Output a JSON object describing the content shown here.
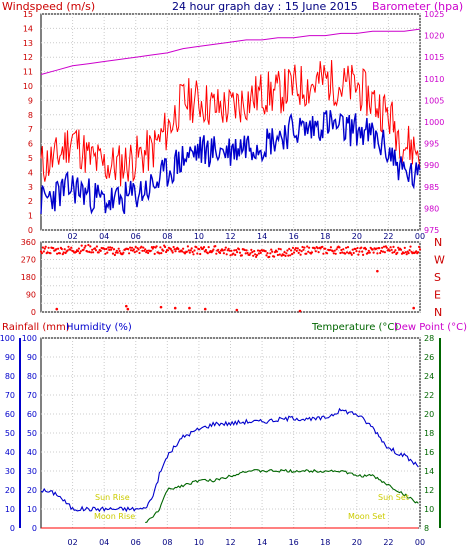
{
  "header": {
    "title": "24 hour graph day : 15 June 2015",
    "left_label": "Windspeed (m/s)",
    "right_label": "Barometer (hpa)"
  },
  "colors": {
    "wind": "#ff0000",
    "gust": "#ff0000",
    "avg": "#0000cc",
    "baro": "#cc00cc",
    "humidity": "#0000cc",
    "temperature": "#006600",
    "dewpoint": "#cc00cc",
    "rain": "#ff0000",
    "sun_moon": "#cccc00",
    "grid": "#cccccc"
  },
  "lower_header": {
    "rain_label": "Rainfall (mm)",
    "humidity_label": "Humidity (%)",
    "temperature_label": "Temperature (°C)",
    "dewpoint_label": "Dew Point (°C)"
  },
  "annotations": {
    "sun_rise": "Sun Rise",
    "sun_set": "Sun Set",
    "moon_rise": "Moon Rise",
    "moon_set": "Moon Set"
  },
  "chart_data": [
    {
      "type": "line",
      "title": "24 hour graph day : 15 June 2015",
      "xlabel": "",
      "x_ticks": [
        "02",
        "04",
        "06",
        "08",
        "10",
        "12",
        "14",
        "16",
        "18",
        "20",
        "22",
        "00"
      ],
      "ylabel_left": "Windspeed (m/s)",
      "ylim_left": [
        0,
        15
      ],
      "y_ticks_left": [
        0,
        1,
        2,
        3,
        4,
        5,
        6,
        7,
        8,
        9,
        10,
        11,
        12,
        13,
        14,
        15
      ],
      "ylabel_right": "Barometer (hpa)",
      "ylim_right": [
        975,
        1025
      ],
      "y_ticks_right": [
        975,
        980,
        985,
        990,
        995,
        1000,
        1005,
        1010,
        1015,
        1020,
        1025
      ],
      "x_hours": [
        0,
        1,
        2,
        3,
        4,
        5,
        6,
        7,
        8,
        9,
        10,
        11,
        12,
        13,
        14,
        15,
        16,
        17,
        18,
        19,
        20,
        21,
        22,
        23,
        24
      ],
      "series": [
        {
          "key": "gust",
          "axis": "left",
          "values": [
            4.5,
            5,
            6.5,
            5,
            4.5,
            4.5,
            5,
            5.5,
            7,
            9,
            9,
            8.5,
            8.5,
            9,
            9.5,
            9.5,
            10,
            10,
            10.5,
            10,
            10,
            9,
            8,
            6,
            5.5
          ]
        },
        {
          "key": "avg",
          "axis": "left",
          "values": [
            2,
            2.5,
            3,
            2.5,
            2,
            2,
            2.5,
            3,
            4,
            5,
            5.5,
            5.5,
            5.5,
            6,
            6,
            6.5,
            7,
            7,
            7.5,
            7,
            7,
            6.5,
            5.5,
            4,
            3.5
          ]
        },
        {
          "key": "barometer",
          "axis": "right",
          "values": [
            1011,
            1012,
            1013,
            1013.5,
            1014,
            1014.5,
            1015,
            1015.5,
            1016,
            1017,
            1017.5,
            1018,
            1018.5,
            1019,
            1019,
            1019.5,
            1019.5,
            1020,
            1020,
            1020.5,
            1020.5,
            1021,
            1021,
            1021,
            1021.5
          ]
        }
      ]
    },
    {
      "type": "scatter",
      "xlabel": "",
      "x_ticks": [
        "02",
        "04",
        "06",
        "08",
        "10",
        "12",
        "14",
        "16",
        "18",
        "20",
        "22",
        "00"
      ],
      "y_ticks_left": [
        0,
        45,
        90,
        135,
        180,
        225,
        270,
        315,
        360
      ],
      "y_ticks_right": [
        "N",
        "W",
        "S",
        "E",
        "N"
      ],
      "ylim": [
        0,
        360
      ],
      "series": [
        {
          "key": "direction_main",
          "x": [
            0,
            1,
            2,
            3,
            4,
            5,
            6,
            7,
            8,
            9,
            10,
            11,
            12,
            13,
            14,
            15,
            16,
            17,
            18,
            19,
            20,
            21,
            22,
            23,
            24
          ],
          "values": [
            320,
            315,
            320,
            325,
            315,
            310,
            320,
            315,
            325,
            320,
            315,
            320,
            310,
            305,
            300,
            305,
            310,
            320,
            315,
            320,
            310,
            315,
            320,
            315,
            320
          ]
        },
        {
          "key": "direction_low",
          "x": [
            1,
            5.4,
            5.5,
            7.6,
            8.5,
            9.4,
            10.4,
            12.4,
            16.4,
            21.3,
            23.6
          ],
          "values": [
            15,
            30,
            15,
            25,
            20,
            20,
            15,
            10,
            5,
            210,
            20
          ]
        }
      ]
    },
    {
      "type": "line",
      "xlabel": "",
      "x_ticks": [
        "02",
        "04",
        "06",
        "08",
        "10",
        "12",
        "14",
        "16",
        "18",
        "20",
        "22",
        "00"
      ],
      "ylabel_left": "Humidity (%)",
      "ylim_left": [
        0,
        100
      ],
      "y_ticks_left": [
        0,
        10,
        20,
        30,
        40,
        50,
        60,
        70,
        80,
        90,
        100
      ],
      "ylabel_right": "Temperature (°C)",
      "ylim_right": [
        8,
        28
      ],
      "y_ticks_right": [
        8,
        10,
        12,
        14,
        16,
        18,
        20,
        22,
        24,
        26,
        28
      ],
      "x_hours": [
        0,
        0.5,
        1,
        2,
        3,
        4,
        5,
        6,
        6.5,
        7,
        7.5,
        8,
        9,
        10,
        11,
        12,
        13,
        14,
        15,
        16,
        17,
        18,
        19,
        20,
        21,
        22,
        23,
        24
      ],
      "series": [
        {
          "key": "humidity",
          "axis": "left",
          "values": [
            20,
            19,
            18,
            10,
            10,
            10,
            10,
            10,
            10,
            15,
            28,
            38,
            48,
            52,
            55,
            55,
            56,
            56,
            57,
            58,
            57,
            58,
            62,
            60,
            53,
            42,
            38,
            32
          ]
        },
        {
          "key": "temperature",
          "axis": "right",
          "values": [
            null,
            null,
            null,
            null,
            null,
            null,
            null,
            null,
            8.5,
            9,
            10,
            12,
            12.5,
            13,
            13,
            13.5,
            14,
            14,
            14,
            14,
            14,
            14,
            14,
            13.5,
            13.5,
            12.5,
            11.5,
            10.5
          ]
        },
        {
          "key": "rain",
          "axis": "left",
          "values": [
            0,
            0,
            0,
            0,
            0,
            0,
            0,
            0,
            0,
            0,
            0,
            0,
            0,
            0,
            0,
            0,
            0,
            0,
            0,
            0,
            0,
            0,
            0,
            0,
            0,
            0,
            0,
            0
          ]
        }
      ]
    }
  ]
}
